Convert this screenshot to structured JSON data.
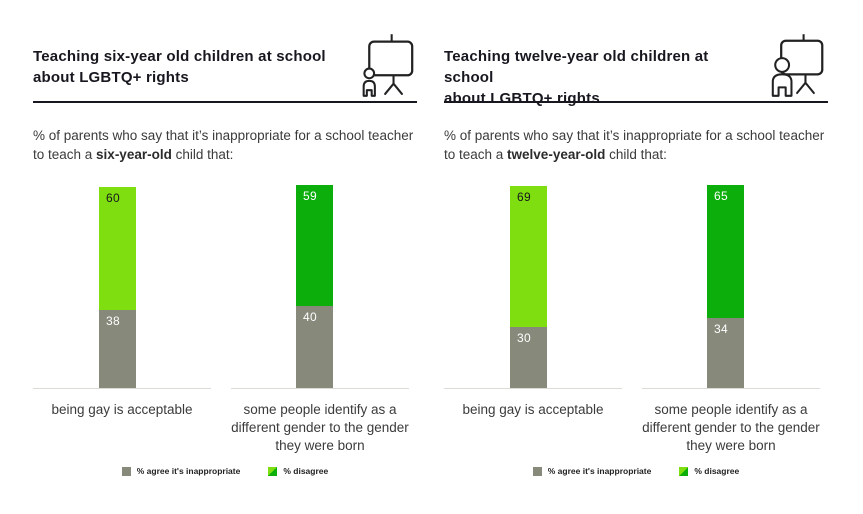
{
  "colors": {
    "lime": "#7FDE10",
    "green": "#0CAE0C",
    "gray": "#87897B",
    "title_ink": "#17171F",
    "body_ink": "#3B3B3B",
    "baseline": "#DCDCD6"
  },
  "legend": {
    "agree_label": "% agree it's inappropriate",
    "disagree_label": "% disagree"
  },
  "panels": [
    {
      "title_line1": "Teaching six-year old children at school",
      "title_line2": "about LGBTQ+ rights",
      "subtitle_prefix": "% of parents who say that it’s inappropriate for a school teacher to teach a ",
      "subtitle_bold": "six-year-old",
      "subtitle_suffix": " child that:",
      "icon": "presenter-at-board-with-small-child-icon"
    },
    {
      "title_line1": "Teaching twelve-year old children at school",
      "title_line2": "about LGBTQ+ rights",
      "subtitle_prefix": "% of parents who say that it’s inappropriate for a school teacher to teach a ",
      "subtitle_bold": "twelve-year-old",
      "subtitle_suffix": " child that:",
      "icon": "presenter-at-board-with-older-child-icon"
    }
  ],
  "chart_data": [
    {
      "type": "bar",
      "stacked": true,
      "title": "Teaching six-year old children at school about LGBTQ+ rights",
      "subtitle": "% of parents who say that it’s inappropriate for a school teacher to teach a six-year-old child that:",
      "categories": [
        "being gay is acceptable",
        "some people identify as a different gender to the gender they were born"
      ],
      "series": [
        {
          "name": "% agree it's inappropriate",
          "values": [
            38,
            40
          ],
          "colors": [
            "#87897B",
            "#87897B"
          ],
          "label_colors": [
            "#FFFFFF",
            "#FFFFFF"
          ]
        },
        {
          "name": "% disagree",
          "values": [
            60,
            59
          ],
          "colors": [
            "#7FDE10",
            "#0CAE0C"
          ],
          "label_colors": [
            "#17171F",
            "#FFFFFF"
          ]
        }
      ],
      "ylim": [
        0,
        100
      ],
      "grid": false,
      "legend_position": "bottom"
    },
    {
      "type": "bar",
      "stacked": true,
      "title": "Teaching twelve-year old children at school about LGBTQ+ rights",
      "subtitle": "% of parents who say that it’s inappropriate for a school teacher to teach a twelve-year-old child that:",
      "categories": [
        "being gay is acceptable",
        "some people identify as a different gender to the gender they were born"
      ],
      "series": [
        {
          "name": "% agree it's inappropriate",
          "values": [
            30,
            34
          ],
          "colors": [
            "#87897B",
            "#87897B"
          ],
          "label_colors": [
            "#FFFFFF",
            "#FFFFFF"
          ]
        },
        {
          "name": "% disagree",
          "values": [
            69,
            65
          ],
          "colors": [
            "#7FDE10",
            "#0CAE0C"
          ],
          "label_colors": [
            "#17171F",
            "#FFFFFF"
          ]
        }
      ],
      "ylim": [
        0,
        100
      ],
      "grid": false,
      "legend_position": "bottom"
    }
  ]
}
